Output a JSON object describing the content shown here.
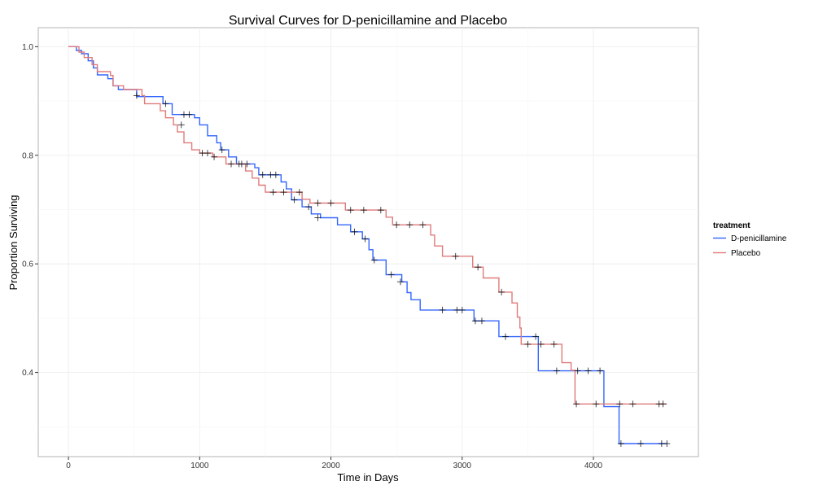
{
  "chart_data": {
    "type": "line",
    "subtype": "kaplan-meier-step",
    "title": "Survival Curves for D-penicillamine and Placebo",
    "xlabel": "Time in Days",
    "ylabel": "Proportion Surviving",
    "xlim": [
      -230,
      4800
    ],
    "ylim": [
      0.245,
      1.035
    ],
    "xticks": [
      0,
      1000,
      2000,
      3000,
      4000
    ],
    "xtick_labels": [
      "0",
      "1000",
      "2000",
      "3000",
      "4000"
    ],
    "yticks": [
      0.4,
      0.6,
      0.8,
      1.0
    ],
    "ytick_labels": [
      "0.4",
      "0.6",
      "0.8",
      "1.0"
    ],
    "grid": true,
    "legend": {
      "title": "treatment",
      "placement": "right"
    },
    "series": [
      {
        "name": "D-penicillamine",
        "color": "#3366ff",
        "steps": [
          [
            0,
            1.0
          ],
          [
            60,
            0.993
          ],
          [
            100,
            0.987
          ],
          [
            150,
            0.974
          ],
          [
            190,
            0.961
          ],
          [
            220,
            0.948
          ],
          [
            300,
            0.941
          ],
          [
            340,
            0.928
          ],
          [
            380,
            0.921
          ],
          [
            520,
            0.908
          ],
          [
            720,
            0.895
          ],
          [
            790,
            0.875
          ],
          [
            960,
            0.869
          ],
          [
            1000,
            0.856
          ],
          [
            1060,
            0.836
          ],
          [
            1130,
            0.823
          ],
          [
            1160,
            0.81
          ],
          [
            1220,
            0.797
          ],
          [
            1280,
            0.784
          ],
          [
            1420,
            0.777
          ],
          [
            1450,
            0.764
          ],
          [
            1620,
            0.751
          ],
          [
            1660,
            0.738
          ],
          [
            1700,
            0.718
          ],
          [
            1780,
            0.705
          ],
          [
            1850,
            0.692
          ],
          [
            1920,
            0.685
          ],
          [
            2050,
            0.672
          ],
          [
            2150,
            0.659
          ],
          [
            2240,
            0.646
          ],
          [
            2290,
            0.626
          ],
          [
            2320,
            0.607
          ],
          [
            2420,
            0.58
          ],
          [
            2540,
            0.567
          ],
          [
            2580,
            0.547
          ],
          [
            2610,
            0.534
          ],
          [
            2680,
            0.515
          ],
          [
            3090,
            0.495
          ],
          [
            3280,
            0.466
          ],
          [
            3580,
            0.403
          ],
          [
            4080,
            0.337
          ],
          [
            4195,
            0.269
          ]
        ],
        "end_time": 4560,
        "censored": [
          [
            740,
            0.895
          ],
          [
            880,
            0.875
          ],
          [
            920,
            0.875
          ],
          [
            1170,
            0.81
          ],
          [
            1320,
            0.784
          ],
          [
            1360,
            0.784
          ],
          [
            1480,
            0.764
          ],
          [
            1540,
            0.764
          ],
          [
            1580,
            0.764
          ],
          [
            1720,
            0.718
          ],
          [
            1830,
            0.705
          ],
          [
            1900,
            0.685
          ],
          [
            2180,
            0.659
          ],
          [
            2260,
            0.646
          ],
          [
            2330,
            0.607
          ],
          [
            2460,
            0.58
          ],
          [
            2530,
            0.567
          ],
          [
            2850,
            0.515
          ],
          [
            2960,
            0.515
          ],
          [
            3000,
            0.515
          ],
          [
            3100,
            0.495
          ],
          [
            3150,
            0.495
          ],
          [
            3330,
            0.466
          ],
          [
            3560,
            0.466
          ],
          [
            3720,
            0.403
          ],
          [
            3880,
            0.403
          ],
          [
            3960,
            0.403
          ],
          [
            4050,
            0.403
          ],
          [
            4210,
            0.269
          ],
          [
            4360,
            0.269
          ],
          [
            4520,
            0.269
          ],
          [
            4560,
            0.269
          ]
        ]
      },
      {
        "name": "Placebo",
        "color": "#e07b7b",
        "steps": [
          [
            0,
            1.0
          ],
          [
            80,
            0.99
          ],
          [
            120,
            0.98
          ],
          [
            180,
            0.967
          ],
          [
            220,
            0.954
          ],
          [
            320,
            0.947
          ],
          [
            340,
            0.928
          ],
          [
            420,
            0.921
          ],
          [
            560,
            0.91
          ],
          [
            580,
            0.895
          ],
          [
            700,
            0.882
          ],
          [
            740,
            0.869
          ],
          [
            800,
            0.856
          ],
          [
            830,
            0.843
          ],
          [
            880,
            0.823
          ],
          [
            940,
            0.81
          ],
          [
            1000,
            0.804
          ],
          [
            1100,
            0.797
          ],
          [
            1200,
            0.784
          ],
          [
            1350,
            0.771
          ],
          [
            1400,
            0.758
          ],
          [
            1450,
            0.745
          ],
          [
            1500,
            0.732
          ],
          [
            1780,
            0.719
          ],
          [
            1840,
            0.712
          ],
          [
            2110,
            0.699
          ],
          [
            2420,
            0.686
          ],
          [
            2470,
            0.672
          ],
          [
            2760,
            0.653
          ],
          [
            2790,
            0.633
          ],
          [
            2850,
            0.614
          ],
          [
            3080,
            0.594
          ],
          [
            3160,
            0.574
          ],
          [
            3280,
            0.548
          ],
          [
            3380,
            0.528
          ],
          [
            3420,
            0.502
          ],
          [
            3440,
            0.482
          ],
          [
            3450,
            0.452
          ],
          [
            3760,
            0.418
          ],
          [
            3830,
            0.404
          ],
          [
            3860,
            0.342
          ]
        ],
        "end_time": 4560,
        "censored": [
          [
            520,
            0.91
          ],
          [
            860,
            0.856
          ],
          [
            1020,
            0.804
          ],
          [
            1060,
            0.804
          ],
          [
            1110,
            0.797
          ],
          [
            1240,
            0.784
          ],
          [
            1300,
            0.784
          ],
          [
            1560,
            0.732
          ],
          [
            1640,
            0.732
          ],
          [
            1760,
            0.732
          ],
          [
            1900,
            0.712
          ],
          [
            2000,
            0.712
          ],
          [
            2150,
            0.699
          ],
          [
            2250,
            0.699
          ],
          [
            2380,
            0.699
          ],
          [
            2500,
            0.672
          ],
          [
            2600,
            0.672
          ],
          [
            2700,
            0.672
          ],
          [
            2950,
            0.614
          ],
          [
            3120,
            0.594
          ],
          [
            3300,
            0.548
          ],
          [
            3500,
            0.452
          ],
          [
            3600,
            0.452
          ],
          [
            3700,
            0.452
          ],
          [
            3870,
            0.342
          ],
          [
            4020,
            0.342
          ],
          [
            4200,
            0.342
          ],
          [
            4300,
            0.342
          ],
          [
            4500,
            0.342
          ],
          [
            4530,
            0.342
          ]
        ]
      }
    ]
  }
}
